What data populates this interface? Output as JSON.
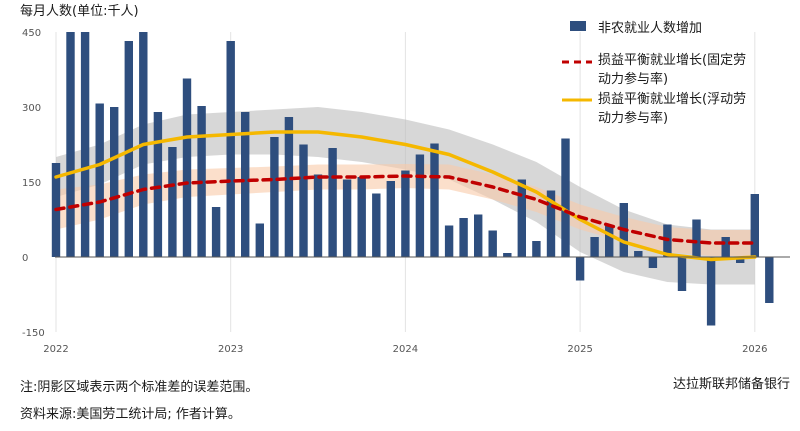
{
  "chart_data": {
    "type": "bar",
    "ylabel": "每月人数(单位:千人)",
    "ylim": [
      -150,
      450
    ],
    "yticks": [
      450,
      300,
      150,
      0,
      -150
    ],
    "xticks": [
      "2022",
      "2023",
      "2024",
      "2025",
      "2026"
    ],
    "grid": "vertical at year boundaries",
    "legend_position": "top-right",
    "bars": {
      "name": "非农就业人数增加",
      "color": "#2e4e7e",
      "start": "2022-01",
      "values": [
        188,
        450,
        450,
        307,
        300,
        432,
        450,
        290,
        220,
        357,
        302,
        100,
        432,
        290,
        67,
        240,
        280,
        225,
        165,
        218,
        155,
        160,
        127,
        152,
        173,
        205,
        227,
        63,
        78,
        85,
        53,
        8,
        155,
        32,
        133,
        237,
        -47,
        40,
        62,
        108,
        12,
        -22,
        65,
        -68,
        75,
        -137,
        40,
        -12,
        126,
        -92
      ]
    },
    "fixed_line": {
      "name": "损益平衡就业增长(固定劳动力参与率)",
      "color": "#c00000",
      "band_color": "#f9c9a8",
      "x": [
        2022.0,
        2022.25,
        2022.5,
        2022.75,
        2023.0,
        2023.25,
        2023.5,
        2023.75,
        2024.0,
        2024.25,
        2024.5,
        2024.75,
        2025.0,
        2025.25,
        2025.5,
        2025.75,
        2026.0
      ],
      "y": [
        95,
        110,
        135,
        148,
        152,
        155,
        160,
        160,
        162,
        160,
        140,
        115,
        80,
        55,
        35,
        28,
        28
      ],
      "band_low": [
        55,
        75,
        105,
        120,
        125,
        130,
        135,
        135,
        138,
        135,
        115,
        90,
        55,
        30,
        10,
        2,
        2
      ],
      "band_high": [
        135,
        145,
        165,
        175,
        178,
        181,
        185,
        185,
        186,
        185,
        165,
        140,
        105,
        80,
        60,
        54,
        54
      ]
    },
    "flex_line": {
      "name": "损益平衡就业增长(浮动劳动力参与率)",
      "color": "#f5b800",
      "band_color": "#bdbdbd",
      "x": [
        2022.0,
        2022.25,
        2022.5,
        2022.75,
        2023.0,
        2023.25,
        2023.5,
        2023.75,
        2024.0,
        2024.25,
        2024.5,
        2024.75,
        2025.0,
        2025.25,
        2025.5,
        2025.75,
        2026.0
      ],
      "y": [
        160,
        185,
        225,
        240,
        245,
        250,
        250,
        240,
        225,
        205,
        170,
        130,
        75,
        30,
        5,
        -5,
        0
      ],
      "band_low": [
        120,
        145,
        185,
        200,
        205,
        205,
        200,
        190,
        175,
        155,
        115,
        70,
        10,
        -30,
        -50,
        -55,
        -55
      ],
      "band_high": [
        200,
        225,
        265,
        285,
        290,
        295,
        300,
        290,
        275,
        255,
        225,
        190,
        140,
        95,
        65,
        55,
        55
      ]
    }
  },
  "legend": {
    "bars_label": "非农就业人数增加",
    "fixed_line1": "损益平衡就业增长(固定劳",
    "fixed_line2": "动力参与率)",
    "flex_line1": "损益平衡就业增长(浮动劳",
    "flex_line2": "动力参与率)"
  },
  "notes": {
    "note": "注:阴影区域表示两个标准差的误差范围。",
    "source": "资料来源:美国劳工统计局; 作者计算。",
    "credit": "达拉斯联邦储备银行"
  }
}
